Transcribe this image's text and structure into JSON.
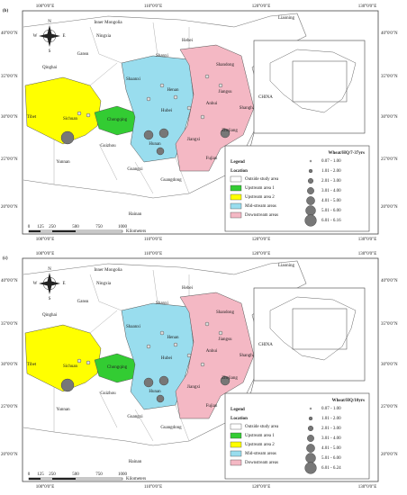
{
  "panels": [
    {
      "label": "(b)",
      "lon_labels": [
        "100°0'0\"E",
        "110°0'0\"E",
        "120°0'0\"E",
        "130°0'0\"E"
      ],
      "lat_labels": [
        "40°0'0\"N",
        "35°0'0\"N",
        "30°0'0\"N",
        "25°0'0\"N",
        "20°0'0\"N"
      ],
      "compass": {
        "n": "N",
        "s": "S",
        "e": "E",
        "w": "W"
      },
      "places": [
        "Inner Mongolia",
        "Liaoning",
        "Hebei",
        "Ningxia",
        "Gansu",
        "Shanxi",
        "Qinghai",
        "Shaanxi",
        "Shandong",
        "Henan",
        "Jiangsu",
        "Tibet",
        "Sichuan",
        "Chongqing",
        "Hubei",
        "Anhui",
        "Shanghai",
        "Zhejiang",
        "Hunan",
        "Jiangxi",
        "Guizhou",
        "Fujian",
        "Yunnan",
        "Guangxi",
        "Guangdong",
        "Taiwan",
        "Hainan"
      ],
      "inset_label": "CHINA",
      "legend": {
        "title": "Legend",
        "location_title": "Location",
        "areas": [
          "Outside study area",
          "Upstream area 1",
          "Upstream area 2",
          "Mid-stream areas",
          "Downstream areas"
        ],
        "size_title": "Wheat/HQ/7-37yrs",
        "size_classes": [
          "0.07 - 1.00",
          "1.01 - 2.00",
          "2.01 - 3.00",
          "3.01 - 4.00",
          "4.01 - 5.00",
          "5.01 - 6.00",
          "6.01 - 6.16"
        ]
      },
      "scale": {
        "ticks": [
          "0",
          "125",
          "250",
          "500",
          "750",
          "1000"
        ],
        "unit": "Kilometers"
      }
    },
    {
      "label": "(c)",
      "lon_labels": [
        "100°0'0\"E",
        "110°0'0\"E",
        "120°0'0\"E",
        "130°0'0\"E"
      ],
      "lat_labels": [
        "40°0'0\"N",
        "35°0'0\"N",
        "30°0'0\"N",
        "25°0'0\"N",
        "20°0'0\"N"
      ],
      "compass": {
        "n": "N",
        "s": "S",
        "e": "E",
        "w": "W"
      },
      "places": [
        "Inner Mongolia",
        "Liaoning",
        "Hebei",
        "Ningxia",
        "Gansu",
        "Shanxi",
        "Qinghai",
        "Shaanxi",
        "Shandong",
        "Henan",
        "Jiangsu",
        "Tibet",
        "Sichuan",
        "Chongqing",
        "Hubei",
        "Anhui",
        "Shanghai",
        "Zhejiang",
        "Hunan",
        "Jiangxi",
        "Guizhou",
        "Fujian",
        "Yunnan",
        "Guangxi",
        "Guangdong",
        "Taiwan",
        "Hainan"
      ],
      "inset_label": "CHINA",
      "legend": {
        "title": "Legend",
        "location_title": "Location",
        "areas": [
          "Outside study area",
          "Upstream area 1",
          "Upstream area 2",
          "Mid-stream areas",
          "Downstream areas"
        ],
        "size_title": "Wheat/HQ/10yrs",
        "size_classes": [
          "0.07 - 1.00",
          "1.01 - 2.00",
          "2.01 - 3.00",
          "3.01 - 4.00",
          "4.01 - 5.00",
          "5.01 - 6.00",
          "6.01 - 6.24"
        ]
      },
      "scale": {
        "ticks": [
          "0",
          "125",
          "250",
          "500",
          "750",
          "1000"
        ],
        "unit": "Kilometers"
      }
    }
  ]
}
